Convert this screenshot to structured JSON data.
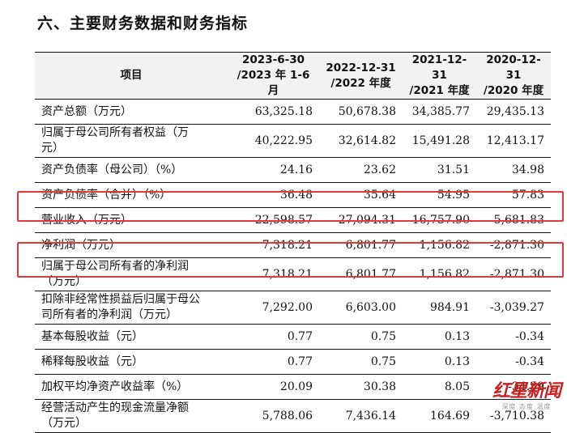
{
  "heading": "六、主要财务数据和财务指标",
  "columns": [
    {
      "line1": "项目",
      "line2": ""
    },
    {
      "line1": "2023-6-30",
      "line2": "/2023 年 1-6 月"
    },
    {
      "line1": "2022-12-31",
      "line2": "/2022 年度"
    },
    {
      "line1": "2021-12-31",
      "line2": "/2021 年度"
    },
    {
      "line1": "2020-12-31",
      "line2": "/2020 年度"
    }
  ],
  "rows": [
    {
      "label_1": "资产总额（万元）",
      "label_2": "",
      "v": [
        "63,325.18",
        "50,678.38",
        "34,385.77",
        "29,435.13"
      ]
    },
    {
      "label_1": "归属于母公司所有者权益（万",
      "label_2": "元）",
      "v": [
        "40,222.95",
        "32,614.82",
        "15,491.28",
        "12,413.17"
      ]
    },
    {
      "label_1": "资产负债率（母公司）（%）",
      "label_2": "",
      "v": [
        "24.16",
        "23.62",
        "31.51",
        "34.98"
      ]
    },
    {
      "label_1": "资产负债率（合并）（%）",
      "label_2": "",
      "v": [
        "36.48",
        "35.64",
        "54.95",
        "57.83"
      ]
    },
    {
      "label_1": "营业收入（万元）",
      "label_2": "",
      "v": [
        "22,598.57",
        "27,094.31",
        "16,757.90",
        "5,681.83"
      ]
    },
    {
      "label_1": "净利润（万元）",
      "label_2": "",
      "v": [
        "7,318.21",
        "6,801.77",
        "1,156.82",
        "-2,871.30"
      ]
    },
    {
      "label_1": "归属于母公司所有者的净利润",
      "label_2": "（万元）",
      "v": [
        "7,318.21",
        "6,801.77",
        "1,156.82",
        "-2,871.30"
      ]
    },
    {
      "label_1": "扣除非经常性损益后归属于母公",
      "label_2": "司所有者的净利润（万元）",
      "v": [
        "7,292.00",
        "6,603.00",
        "984.91",
        "-3,039.27"
      ]
    },
    {
      "label_1": "基本每股收益（元）",
      "label_2": "",
      "v": [
        "0.77",
        "0.75",
        "0.13",
        "-0.34"
      ]
    },
    {
      "label_1": "稀释每股收益（元）",
      "label_2": "",
      "v": [
        "0.77",
        "0.75",
        "0.13",
        "-0.34"
      ]
    },
    {
      "label_1": "加权平均净资产收益率（%）",
      "label_2": "",
      "v": [
        "20.09",
        "30.38",
        "8.05",
        "-34.39"
      ]
    },
    {
      "label_1": "经营活动产生的现金流量净额",
      "label_2": "（万元）",
      "v": [
        "5,788.06",
        "7,436.14",
        "164.69",
        "-3,710.38"
      ]
    }
  ],
  "highlight_color": "#e53935",
  "watermark": {
    "brand": "红星新闻",
    "sub": "深度 态度 温度"
  }
}
